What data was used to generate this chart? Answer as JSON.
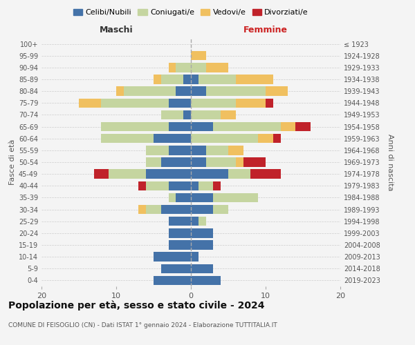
{
  "age_groups": [
    "0-4",
    "5-9",
    "10-14",
    "15-19",
    "20-24",
    "25-29",
    "30-34",
    "35-39",
    "40-44",
    "45-49",
    "50-54",
    "55-59",
    "60-64",
    "65-69",
    "70-74",
    "75-79",
    "80-84",
    "85-89",
    "90-94",
    "95-99",
    "100+"
  ],
  "birth_years": [
    "2019-2023",
    "2014-2018",
    "2009-2013",
    "2004-2008",
    "1999-2003",
    "1994-1998",
    "1989-1993",
    "1984-1988",
    "1979-1983",
    "1974-1978",
    "1969-1973",
    "1964-1968",
    "1959-1963",
    "1954-1958",
    "1949-1953",
    "1944-1948",
    "1939-1943",
    "1934-1938",
    "1929-1933",
    "1924-1928",
    "≤ 1923"
  ],
  "colors": {
    "celibi": "#4472a8",
    "coniugati": "#c5d5a0",
    "vedovi": "#f0c060",
    "divorziati": "#c0222a"
  },
  "maschi": {
    "celibi": [
      5,
      4,
      5,
      3,
      3,
      3,
      4,
      2,
      3,
      6,
      4,
      3,
      5,
      3,
      1,
      3,
      2,
      1,
      0,
      0,
      0
    ],
    "coniugati": [
      0,
      0,
      0,
      0,
      0,
      0,
      2,
      1,
      3,
      5,
      2,
      3,
      7,
      9,
      3,
      9,
      7,
      3,
      2,
      0,
      0
    ],
    "vedovi": [
      0,
      0,
      0,
      0,
      0,
      0,
      1,
      0,
      0,
      0,
      0,
      0,
      0,
      0,
      0,
      3,
      1,
      1,
      1,
      0,
      0
    ],
    "divorziati": [
      0,
      0,
      0,
      0,
      0,
      0,
      0,
      0,
      1,
      2,
      0,
      0,
      0,
      0,
      0,
      0,
      0,
      0,
      0,
      0,
      0
    ]
  },
  "femmine": {
    "celibi": [
      4,
      3,
      1,
      3,
      3,
      1,
      3,
      3,
      1,
      5,
      2,
      2,
      0,
      3,
      0,
      0,
      2,
      1,
      0,
      0,
      0
    ],
    "coniugati": [
      0,
      0,
      0,
      0,
      0,
      1,
      2,
      6,
      2,
      3,
      4,
      3,
      9,
      9,
      4,
      6,
      8,
      5,
      2,
      0,
      0
    ],
    "vedovi": [
      0,
      0,
      0,
      0,
      0,
      0,
      0,
      0,
      0,
      0,
      1,
      2,
      2,
      2,
      2,
      4,
      3,
      5,
      3,
      2,
      0
    ],
    "divorziati": [
      0,
      0,
      0,
      0,
      0,
      0,
      0,
      0,
      1,
      4,
      3,
      0,
      1,
      2,
      0,
      1,
      0,
      0,
      0,
      0,
      0
    ]
  },
  "xlim": 20,
  "title": "Popolazione per età, sesso e stato civile - 2024",
  "subtitle": "COMUNE DI FEISOGLIO (CN) - Dati ISTAT 1° gennaio 2024 - Elaborazione TUTTITALIA.IT",
  "xlabel_left": "Maschi",
  "xlabel_right": "Femmine",
  "ylabel_left": "Fasce di età",
  "ylabel_right": "Anni di nascita",
  "legend_labels": [
    "Celibi/Nubili",
    "Coniugati/e",
    "Vedovi/e",
    "Divorziati/e"
  ],
  "bg_color": "#f4f4f4",
  "grid_color": "#cccccc"
}
